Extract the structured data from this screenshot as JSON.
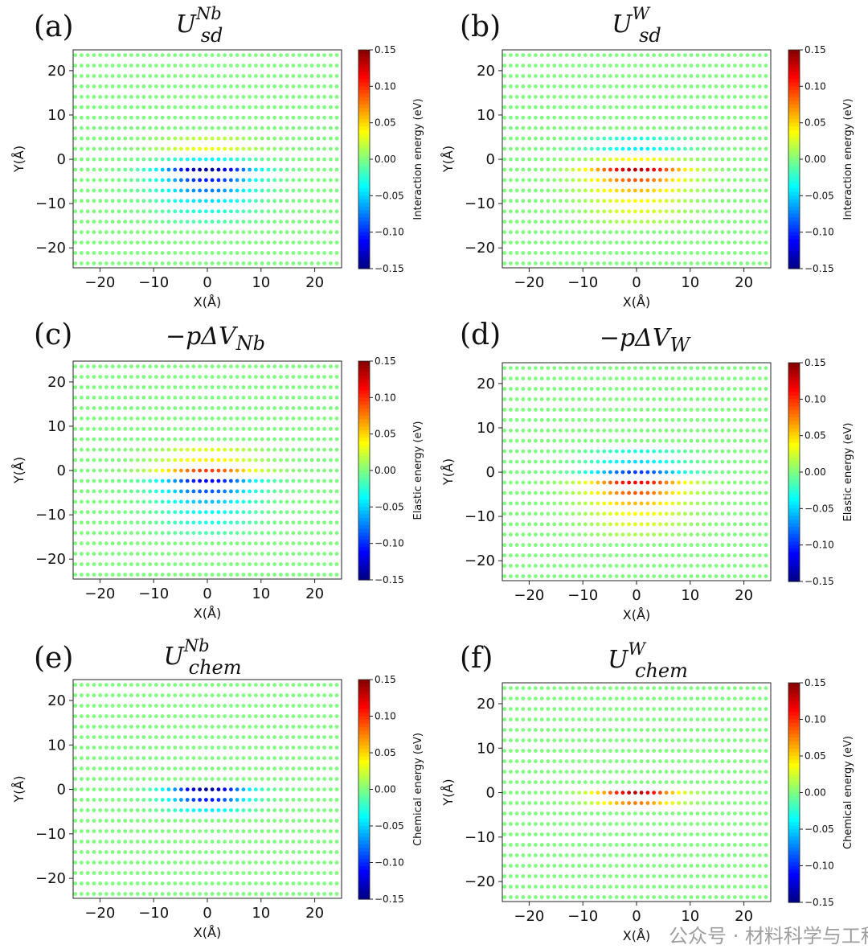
{
  "watermark": "公众号 · 材料科学与工程",
  "chart_data": [
    {
      "type": "scatter",
      "panel": "(a)",
      "title": {
        "base": "U",
        "sup": "Nb",
        "sub": "sd"
      },
      "xlabel": "X(Å)",
      "ylabel": "Y(Å)",
      "xlim": [
        -25,
        25
      ],
      "ylim": [
        -24.5,
        24.7
      ],
      "xticks": [
        -20,
        -10,
        0,
        10,
        20
      ],
      "yticks": [
        -20,
        -10,
        0,
        10,
        20
      ],
      "colorbar": {
        "label": "Interaction energy (eV)",
        "range": [
          -0.15,
          0.15
        ],
        "ticks": [
          "0.15",
          "0.10",
          "0.05",
          "0.00",
          "−0.05",
          "−0.10",
          "−0.15"
        ],
        "cmap": "jet"
      },
      "baseline": 0.0,
      "lateral_sigma": 6,
      "rows": [
        {
          "y": 4.7,
          "peak": 0.02
        },
        {
          "y": 2.35,
          "peak": 0.035
        },
        {
          "y": 0,
          "peak": -0.04
        },
        {
          "y": -2.35,
          "peak": -0.15
        },
        {
          "y": -4.7,
          "peak": -0.11
        },
        {
          "y": -7.05,
          "peak": -0.08
        },
        {
          "y": -9.4,
          "peak": -0.05
        },
        {
          "y": -11.75,
          "peak": -0.03
        },
        {
          "y": -14.1,
          "peak": -0.015
        }
      ]
    },
    {
      "type": "scatter",
      "panel": "(b)",
      "title": {
        "base": "U",
        "sup": "W",
        "sub": "sd"
      },
      "xlabel": "X(Å)",
      "ylabel": "Y(Å)",
      "xlim": [
        -25,
        25
      ],
      "ylim": [
        -24.5,
        24.7
      ],
      "xticks": [
        -20,
        -10,
        0,
        10,
        20
      ],
      "yticks": [
        -20,
        -10,
        0,
        10,
        20
      ],
      "colorbar": {
        "label": "Interaction energy (eV)",
        "range": [
          -0.15,
          0.15
        ],
        "ticks": [
          "0.15",
          "0.10",
          "0.05",
          "0.00",
          "−0.05",
          "−0.10",
          "−0.15"
        ],
        "cmap": "jet"
      },
      "baseline": 0.0,
      "lateral_sigma": 6,
      "rows": [
        {
          "y": 4.7,
          "peak": -0.03
        },
        {
          "y": 2.35,
          "peak": -0.045
        },
        {
          "y": 0,
          "peak": 0.04
        },
        {
          "y": -2.35,
          "peak": 0.14
        },
        {
          "y": -4.7,
          "peak": 0.09
        },
        {
          "y": -7.05,
          "peak": 0.06
        },
        {
          "y": -9.4,
          "peak": 0.04
        },
        {
          "y": -11.75,
          "peak": 0.03
        },
        {
          "y": -14.1,
          "peak": 0.015
        }
      ]
    },
    {
      "type": "scatter",
      "panel": "(c)",
      "title": {
        "base": "−pΔV",
        "sup": "",
        "sub": "Nb"
      },
      "xlabel": "X(Å)",
      "ylabel": "Y(Å)",
      "xlim": [
        -25,
        25
      ],
      "ylim": [
        -24.5,
        24.7
      ],
      "xticks": [
        -20,
        -10,
        0,
        10,
        20
      ],
      "yticks": [
        -20,
        -10,
        0,
        10,
        20
      ],
      "colorbar": {
        "label": "Elastic energy (eV)",
        "range": [
          -0.15,
          0.15
        ],
        "ticks": [
          "0.15",
          "0.10",
          "0.05",
          "0.00",
          "−0.05",
          "−0.10",
          "−0.15"
        ],
        "cmap": "jet"
      },
      "baseline": 0.0,
      "lateral_sigma": 6,
      "rows": [
        {
          "y": 4.7,
          "peak": 0.03
        },
        {
          "y": 2.35,
          "peak": 0.045
        },
        {
          "y": 0,
          "peak": 0.1
        },
        {
          "y": -2.35,
          "peak": -0.12
        },
        {
          "y": -4.7,
          "peak": -0.09
        },
        {
          "y": -7.05,
          "peak": -0.06
        },
        {
          "y": -9.4,
          "peak": -0.04
        },
        {
          "y": -11.75,
          "peak": -0.03
        },
        {
          "y": -14.1,
          "peak": -0.015
        }
      ]
    },
    {
      "type": "scatter",
      "panel": "(d)",
      "title": {
        "base": "−pΔV",
        "sup": "",
        "sub": "W"
      },
      "xlabel": "X(Å)",
      "ylabel": "Y(Å)",
      "xlim": [
        -25,
        25
      ],
      "ylim": [
        -24.5,
        24.7
      ],
      "xticks": [
        -20,
        -10,
        0,
        10,
        20
      ],
      "yticks": [
        -20,
        -10,
        0,
        10,
        20
      ],
      "colorbar": {
        "label": "Elastic energy (eV)",
        "range": [
          -0.15,
          0.15
        ],
        "ticks": [
          "0.15",
          "0.10",
          "0.05",
          "0.00",
          "−0.05",
          "−0.10",
          "−0.15"
        ],
        "cmap": "jet"
      },
      "baseline": 0.0,
      "lateral_sigma": 6,
      "rows": [
        {
          "y": 4.7,
          "peak": -0.03
        },
        {
          "y": 2.35,
          "peak": -0.05
        },
        {
          "y": 0,
          "peak": -0.1
        },
        {
          "y": -2.35,
          "peak": 0.12
        },
        {
          "y": -4.7,
          "peak": 0.09
        },
        {
          "y": -7.05,
          "peak": 0.06
        },
        {
          "y": -9.4,
          "peak": 0.04
        },
        {
          "y": -11.75,
          "peak": 0.03
        },
        {
          "y": -14.1,
          "peak": 0.015
        }
      ]
    },
    {
      "type": "scatter",
      "panel": "(e)",
      "title": {
        "base": "U",
        "sup": "Nb",
        "sub": "chem"
      },
      "xlabel": "X(Å)",
      "ylabel": "Y(Å)",
      "xlim": [
        -25,
        25
      ],
      "ylim": [
        -24.5,
        24.7
      ],
      "xticks": [
        -20,
        -10,
        0,
        10,
        20
      ],
      "yticks": [
        -20,
        -10,
        0,
        10,
        20
      ],
      "colorbar": {
        "label": "Chemical energy (eV)",
        "range": [
          -0.15,
          0.15
        ],
        "ticks": [
          "0.15",
          "0.10",
          "0.05",
          "0.00",
          "−0.05",
          "−0.10",
          "−0.15"
        ],
        "cmap": "jet"
      },
      "baseline": 0.0,
      "lateral_sigma": 5,
      "rows": [
        {
          "y": 0,
          "peak": -0.15
        },
        {
          "y": -2.35,
          "peak": -0.11
        },
        {
          "y": -4.7,
          "peak": -0.045
        }
      ]
    },
    {
      "type": "scatter",
      "panel": "(f)",
      "title": {
        "base": "U",
        "sup": "W",
        "sub": "chem"
      },
      "xlabel": "X(Å)",
      "ylabel": "Y(Å)",
      "xlim": [
        -25,
        25
      ],
      "ylim": [
        -24.5,
        24.7
      ],
      "xticks": [
        -20,
        -10,
        0,
        10,
        20
      ],
      "yticks": [
        -20,
        -10,
        0,
        10,
        20
      ],
      "colorbar": {
        "label": "Chemical energy (eV)",
        "range": [
          -0.15,
          0.15
        ],
        "ticks": [
          "0.15",
          "0.10",
          "0.05",
          "0.00",
          "−0.05",
          "−0.10",
          "−0.15"
        ],
        "cmap": "jet"
      },
      "baseline": 0.0,
      "lateral_sigma": 5,
      "rows": [
        {
          "y": 0,
          "peak": 0.14
        },
        {
          "y": -2.35,
          "peak": 0.08
        }
      ]
    }
  ]
}
